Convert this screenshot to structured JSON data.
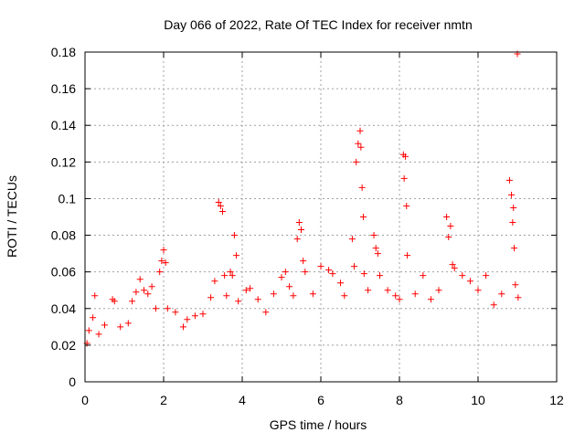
{
  "chart_data": {
    "type": "scatter",
    "title": "Day 066 of 2022, Rate Of TEC Index for receiver nmtn",
    "xlabel": "GPS time / hours",
    "ylabel": "ROTI / TECUs",
    "xlim": [
      0,
      12
    ],
    "ylim": [
      0,
      0.18
    ],
    "x_ticks": [
      0,
      2,
      4,
      6,
      8,
      10,
      12
    ],
    "x_tick_labels": [
      "0",
      "2",
      "4",
      "6",
      "8",
      "10",
      "12"
    ],
    "y_ticks": [
      0,
      0.02,
      0.04,
      0.06,
      0.08,
      0.1,
      0.12,
      0.14,
      0.16,
      0.18
    ],
    "y_tick_labels": [
      "0",
      "0.02",
      "0.04",
      "0.06",
      "0.08",
      "0.1",
      "0.12",
      "0.14",
      "0.16",
      "0.18"
    ],
    "grid": true,
    "marker": "+",
    "marker_color": "#ff0000",
    "series": [
      {
        "name": "ROTI",
        "points": [
          [
            0.05,
            0.021
          ],
          [
            0.1,
            0.028
          ],
          [
            0.2,
            0.035
          ],
          [
            0.25,
            0.047
          ],
          [
            0.35,
            0.026
          ],
          [
            0.5,
            0.031
          ],
          [
            0.7,
            0.045
          ],
          [
            0.75,
            0.044
          ],
          [
            0.9,
            0.03
          ],
          [
            1.1,
            0.032
          ],
          [
            1.2,
            0.044
          ],
          [
            1.3,
            0.049
          ],
          [
            1.4,
            0.056
          ],
          [
            1.5,
            0.05
          ],
          [
            1.6,
            0.048
          ],
          [
            1.7,
            0.052
          ],
          [
            1.8,
            0.04
          ],
          [
            1.9,
            0.06
          ],
          [
            1.95,
            0.066
          ],
          [
            2.0,
            0.072
          ],
          [
            2.05,
            0.065
          ],
          [
            2.1,
            0.04
          ],
          [
            2.3,
            0.038
          ],
          [
            2.5,
            0.03
          ],
          [
            2.6,
            0.034
          ],
          [
            2.8,
            0.036
          ],
          [
            3.0,
            0.037
          ],
          [
            3.2,
            0.046
          ],
          [
            3.3,
            0.055
          ],
          [
            3.4,
            0.098
          ],
          [
            3.45,
            0.096
          ],
          [
            3.5,
            0.093
          ],
          [
            3.55,
            0.058
          ],
          [
            3.6,
            0.047
          ],
          [
            3.7,
            0.06
          ],
          [
            3.75,
            0.058
          ],
          [
            3.8,
            0.08
          ],
          [
            3.85,
            0.069
          ],
          [
            3.9,
            0.044
          ],
          [
            4.1,
            0.05
          ],
          [
            4.2,
            0.051
          ],
          [
            4.4,
            0.045
          ],
          [
            4.6,
            0.038
          ],
          [
            4.8,
            0.048
          ],
          [
            5.0,
            0.057
          ],
          [
            5.1,
            0.06
          ],
          [
            5.2,
            0.052
          ],
          [
            5.3,
            0.047
          ],
          [
            5.4,
            0.078
          ],
          [
            5.45,
            0.087
          ],
          [
            5.5,
            0.083
          ],
          [
            5.55,
            0.066
          ],
          [
            5.6,
            0.06
          ],
          [
            5.8,
            0.048
          ],
          [
            6.0,
            0.063
          ],
          [
            6.2,
            0.061
          ],
          [
            6.3,
            0.059
          ],
          [
            6.5,
            0.054
          ],
          [
            6.6,
            0.047
          ],
          [
            6.8,
            0.078
          ],
          [
            6.85,
            0.063
          ],
          [
            6.9,
            0.12
          ],
          [
            6.95,
            0.13
          ],
          [
            7.0,
            0.137
          ],
          [
            7.02,
            0.128
          ],
          [
            7.05,
            0.106
          ],
          [
            7.08,
            0.09
          ],
          [
            7.1,
            0.059
          ],
          [
            7.2,
            0.05
          ],
          [
            7.35,
            0.08
          ],
          [
            7.4,
            0.073
          ],
          [
            7.45,
            0.07
          ],
          [
            7.5,
            0.058
          ],
          [
            7.7,
            0.05
          ],
          [
            7.9,
            0.047
          ],
          [
            8.0,
            0.045
          ],
          [
            8.1,
            0.124
          ],
          [
            8.15,
            0.123
          ],
          [
            8.12,
            0.111
          ],
          [
            8.18,
            0.096
          ],
          [
            8.2,
            0.069
          ],
          [
            8.4,
            0.048
          ],
          [
            8.6,
            0.058
          ],
          [
            8.8,
            0.045
          ],
          [
            9.0,
            0.05
          ],
          [
            9.2,
            0.09
          ],
          [
            9.25,
            0.079
          ],
          [
            9.3,
            0.085
          ],
          [
            9.35,
            0.064
          ],
          [
            9.4,
            0.062
          ],
          [
            9.6,
            0.058
          ],
          [
            9.8,
            0.055
          ],
          [
            10.0,
            0.05
          ],
          [
            10.2,
            0.058
          ],
          [
            10.4,
            0.042
          ],
          [
            10.6,
            0.048
          ],
          [
            10.8,
            0.11
          ],
          [
            10.85,
            0.102
          ],
          [
            10.9,
            0.095
          ],
          [
            10.88,
            0.087
          ],
          [
            10.92,
            0.073
          ],
          [
            10.95,
            0.053
          ],
          [
            11.0,
            0.179
          ],
          [
            11.02,
            0.046
          ]
        ]
      }
    ]
  }
}
